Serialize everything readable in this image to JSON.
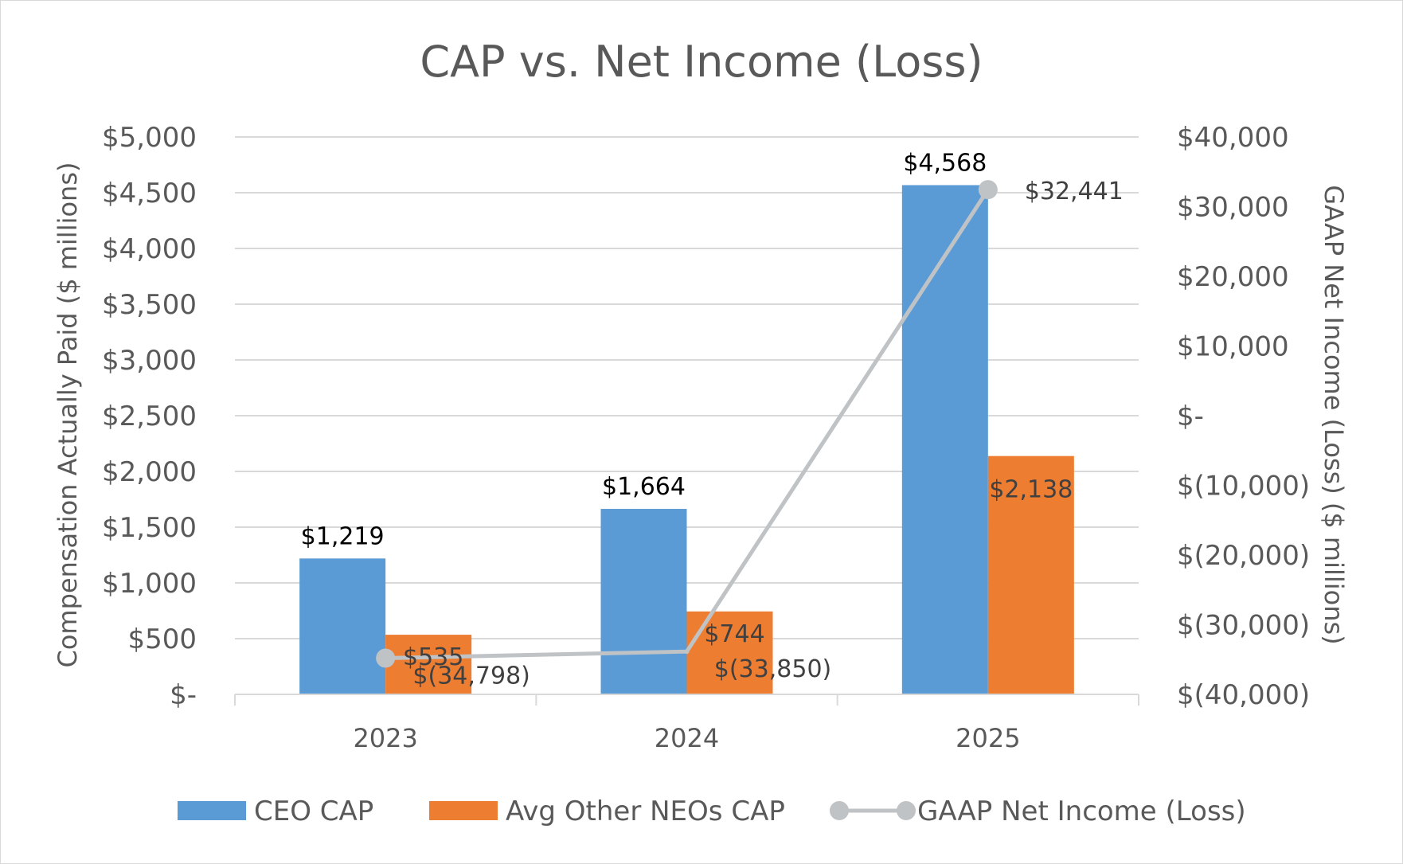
{
  "chart_data": {
    "type": "bar",
    "title": "CAP vs. Net Income (Loss)",
    "categories": [
      "2023",
      "2024",
      "2025"
    ],
    "series": [
      {
        "name": "CEO CAP",
        "kind": "bar",
        "axis": "left",
        "color": "#5b9bd5",
        "values": [
          1219,
          1664,
          4568
        ],
        "labels": [
          "$1,219",
          "$1,664",
          "$4,568"
        ]
      },
      {
        "name": "Avg Other NEOs CAP",
        "kind": "bar",
        "axis": "left",
        "color": "#ed7d31",
        "values": [
          535,
          744,
          2138
        ],
        "labels": [
          "$535",
          "$744",
          "$2,138"
        ]
      },
      {
        "name": "GAAP Net Income (Loss)",
        "kind": "line",
        "axis": "right",
        "color": "#bfc3c6",
        "values": [
          -34798,
          -33850,
          32441
        ],
        "labels": [
          "$(34,798)",
          "$(33,850)",
          "$32,441"
        ]
      }
    ],
    "y_left": {
      "label": "Compensation Actually Paid ($ millions)",
      "lim": [
        0,
        5000
      ],
      "ticks": [
        0,
        500,
        1000,
        1500,
        2000,
        2500,
        3000,
        3500,
        4000,
        4500,
        5000
      ],
      "tick_labels": [
        "$-",
        "$500",
        "$1,000",
        "$1,500",
        "$2,000",
        "$2,500",
        "$3,000",
        "$3,500",
        "$4,000",
        "$4,500",
        "$5,000"
      ]
    },
    "y_right": {
      "label": "GAAP Net Income (Loss) ($ millions)",
      "lim": [
        -40000,
        40000
      ],
      "ticks": [
        -40000,
        -30000,
        -20000,
        -10000,
        0,
        10000,
        20000,
        30000,
        40000
      ],
      "tick_labels": [
        "$(40,000)",
        "$(30,000)",
        "$(20,000)",
        "$(10,000)",
        "$-",
        "$10,000",
        "$20,000",
        "$30,000",
        "$40,000"
      ]
    },
    "grid": true,
    "legend_position": "bottom"
  }
}
